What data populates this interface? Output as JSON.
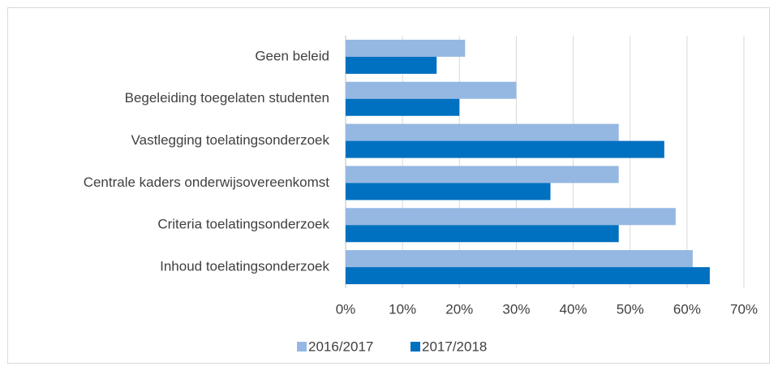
{
  "chart_data": {
    "type": "bar",
    "orientation": "horizontal",
    "categories": [
      "Geen beleid",
      "Begeleiding toegelaten studenten",
      "Vastlegging toelatingsonderzoek",
      "Centrale kaders onderwijsovereenkomst",
      "Criteria toelatingsonderzoek",
      "Inhoud toelatingsonderzoek"
    ],
    "series": [
      {
        "name": "2016/2017",
        "color": "#95b8e2",
        "values": [
          21,
          30,
          48,
          48,
          58,
          61
        ]
      },
      {
        "name": "2017/2018",
        "color": "#0070c0",
        "values": [
          16,
          20,
          56,
          36,
          48,
          64
        ]
      }
    ],
    "xlim": [
      0,
      70
    ],
    "xticks": [
      {
        "value": 0,
        "label": "0%"
      },
      {
        "value": 10,
        "label": "10%"
      },
      {
        "value": 20,
        "label": "20%"
      },
      {
        "value": 30,
        "label": "30%"
      },
      {
        "value": 40,
        "label": "40%"
      },
      {
        "value": 50,
        "label": "50%"
      },
      {
        "value": 60,
        "label": "60%"
      },
      {
        "value": 70,
        "label": "70%"
      }
    ],
    "grid": true,
    "legend": "bottom"
  }
}
